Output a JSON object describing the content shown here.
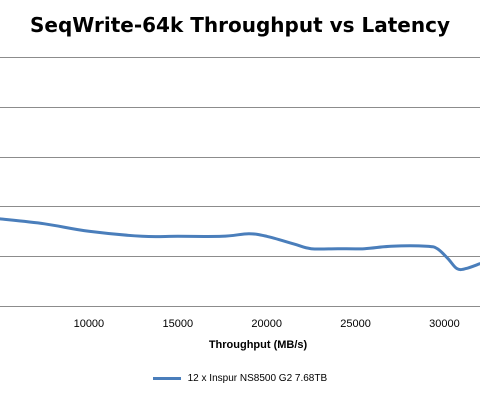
{
  "chart_data": {
    "type": "line",
    "title": "SeqWrite-64k Throughput vs Latency",
    "xlabel": "Throughput (MB/s)",
    "ylabel": "",
    "xlim": [
      5000,
      32000
    ],
    "xticks": [
      10000,
      15000,
      20000,
      25000,
      30000
    ],
    "y_gridlines": 6,
    "grid": true,
    "legend_position": "bottom",
    "series": [
      {
        "name": "12 x Inspur NS8500 G2 7.68TB",
        "color": "#4a7ebb",
        "x": [
          5000,
          7500,
          10000,
          13000,
          15000,
          17500,
          19000,
          20000,
          21500,
          22500,
          24000,
          25500,
          27000,
          29000,
          29600,
          30200,
          30700,
          31200,
          32000
        ],
        "y": [
          0.35,
          0.33,
          0.3,
          0.28,
          0.28,
          0.28,
          0.29,
          0.28,
          0.25,
          0.23,
          0.23,
          0.23,
          0.24,
          0.24,
          0.23,
          0.19,
          0.15,
          0.15,
          0.17
        ]
      }
    ]
  }
}
